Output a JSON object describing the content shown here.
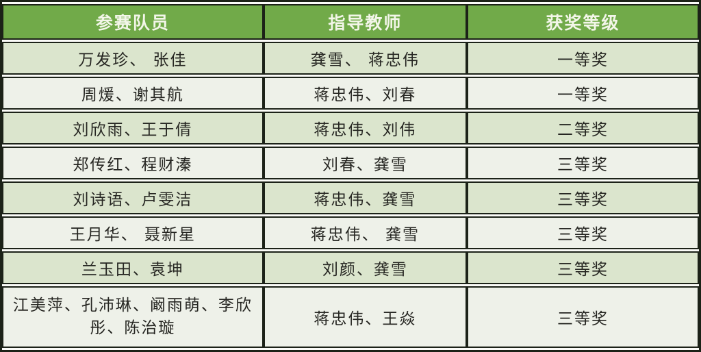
{
  "table": {
    "headers": {
      "members": "参赛队员",
      "teachers": "指导教师",
      "award": "获奖等级"
    },
    "rows": [
      {
        "members": "万发珍、 张佳",
        "teachers": "龚雪、 蒋忠伟",
        "award": "一等奖"
      },
      {
        "members": "周煖、谢其航",
        "teachers": "蒋忠伟、刘春",
        "award": "一等奖"
      },
      {
        "members": "刘欣雨、王于倩",
        "teachers": "蒋忠伟、刘伟",
        "award": "二等奖"
      },
      {
        "members": "郑传红、程财溱",
        "teachers": "刘春、龚雪",
        "award": "三等奖"
      },
      {
        "members": "刘诗语、卢雯洁",
        "teachers": "蒋忠伟、龚雪",
        "award": "三等奖"
      },
      {
        "members": "王月华、 聂新星",
        "teachers": "蒋忠伟、 龚雪",
        "award": "三等奖"
      },
      {
        "members": "兰玉田、袁坤",
        "teachers": "刘颜、龚雪",
        "award": "三等奖"
      },
      {
        "members": "江美萍、孔沛琳、阚雨萌、李欣彤、陈治璇",
        "teachers": "蒋忠伟、王焱",
        "award": "三等奖"
      }
    ],
    "colors": {
      "header_bg": "#71aa49",
      "header_text": "#f3f6e9",
      "row_green_bg": "#dbe5cd",
      "row_light_bg": "#eef1e9",
      "border": "#1c2218",
      "cell_text": "#262622"
    }
  }
}
